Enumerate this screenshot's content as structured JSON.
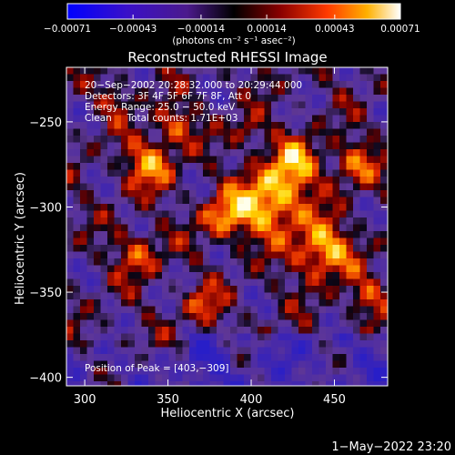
{
  "chart_data": {
    "type": "heatmap",
    "title": "Reconstructed RHESSI Image",
    "xlabel": "Heliocentric X (arcsec)",
    "ylabel": "Heliocentric Y (arcsec)",
    "xlim": [
      289,
      482
    ],
    "ylim": [
      -405,
      -218
    ],
    "x_ticks": [
      300,
      350,
      400,
      450
    ],
    "y_ticks": [
      -400,
      -350,
      -300,
      -250
    ],
    "x_tick_labels": [
      "300",
      "350",
      "400",
      "450"
    ],
    "y_tick_labels": [
      "−400",
      "−350",
      "−300",
      "−250"
    ],
    "colorbar": {
      "range": [
        -0.00071,
        0.00071
      ],
      "tick_labels": [
        "−0.00071",
        "−0.00043",
        "−0.00014",
        "0.00014",
        "0.00043",
        "0.00071"
      ],
      "unit_label": "(photons cm⁻² s⁻¹ asec⁻²)"
    },
    "annotations": [
      "20−Sep−2002 20:28:32.000 to 20:29:44.000",
      "Detectors: 3F 4F 5F 6F 7F 8F, Att 0",
      "Energy Range: 25.0 − 50.0 keV",
      "Clean     Total counts: 1.71E+03"
    ],
    "peak_label": "Position of Peak = [403,−309]",
    "peak": [
      403,
      -309
    ],
    "colors": {
      "low": "#0000ff",
      "mid": "#000000",
      "high": "#ffffff"
    }
  },
  "footer": {
    "timestamp": "1−May−2022 23:20"
  }
}
